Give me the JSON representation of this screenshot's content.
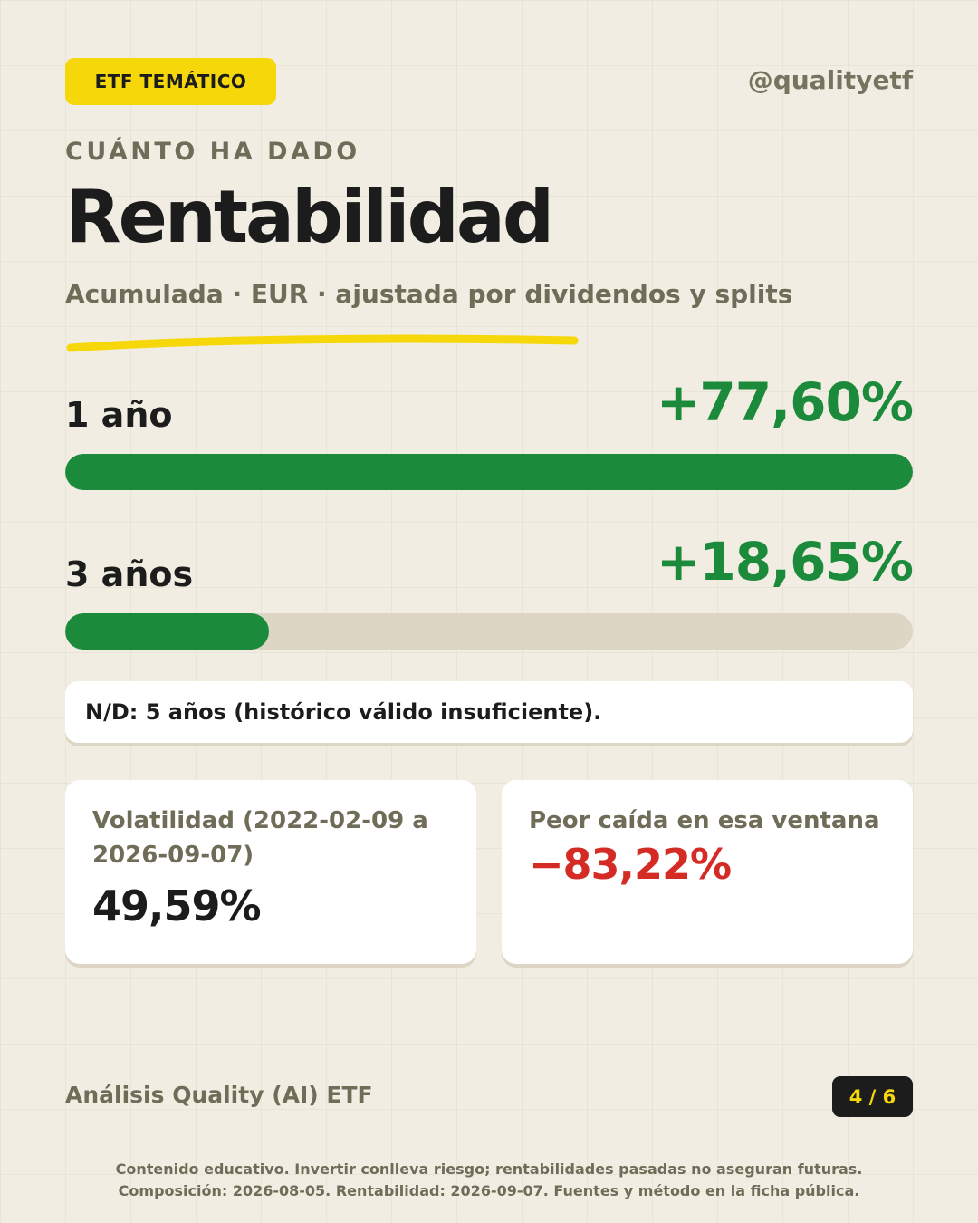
{
  "header": {
    "tag": "ETF TEMÁTICO",
    "handle": "@qualityetf"
  },
  "heading": {
    "eyebrow": "CUÁNTO HA DADO",
    "title": "Rentabilidad",
    "subtitle": "Acumulada · EUR · ajustada por dividendos y splits"
  },
  "periods": [
    {
      "label": "1 año",
      "value": "+77,60%",
      "bar_fraction": 1.0
    },
    {
      "label": "3 años",
      "value": "+18,65%",
      "bar_fraction": 0.24
    }
  ],
  "note": "N/D: 5 años (histórico válido insuficiente).",
  "stats": {
    "volatility": {
      "label": "Volatilidad (2022-02-09 a 2026-09-07)",
      "value": "49,59%"
    },
    "drawdown": {
      "label": "Peor caída en esa ventana",
      "value": "−83,22%"
    }
  },
  "footer": {
    "brand": "Análisis Quality (AI) ETF",
    "page": "4 / 6",
    "disclaimer_line1": "Contenido educativo. Invertir conlleva riesgo; rentabilidades pasadas no aseguran futuras.",
    "disclaimer_line2": "Composición: 2026-08-05. Rentabilidad: 2026-09-07. Fuentes y método en la ficha pública."
  },
  "colors": {
    "background": "#f1ede2",
    "accent_yellow": "#f6d80a",
    "positive_green": "#1b8a3b",
    "negative_red": "#d52b25",
    "muted_text": "#6f6c58",
    "track": "#ddd6c4"
  }
}
